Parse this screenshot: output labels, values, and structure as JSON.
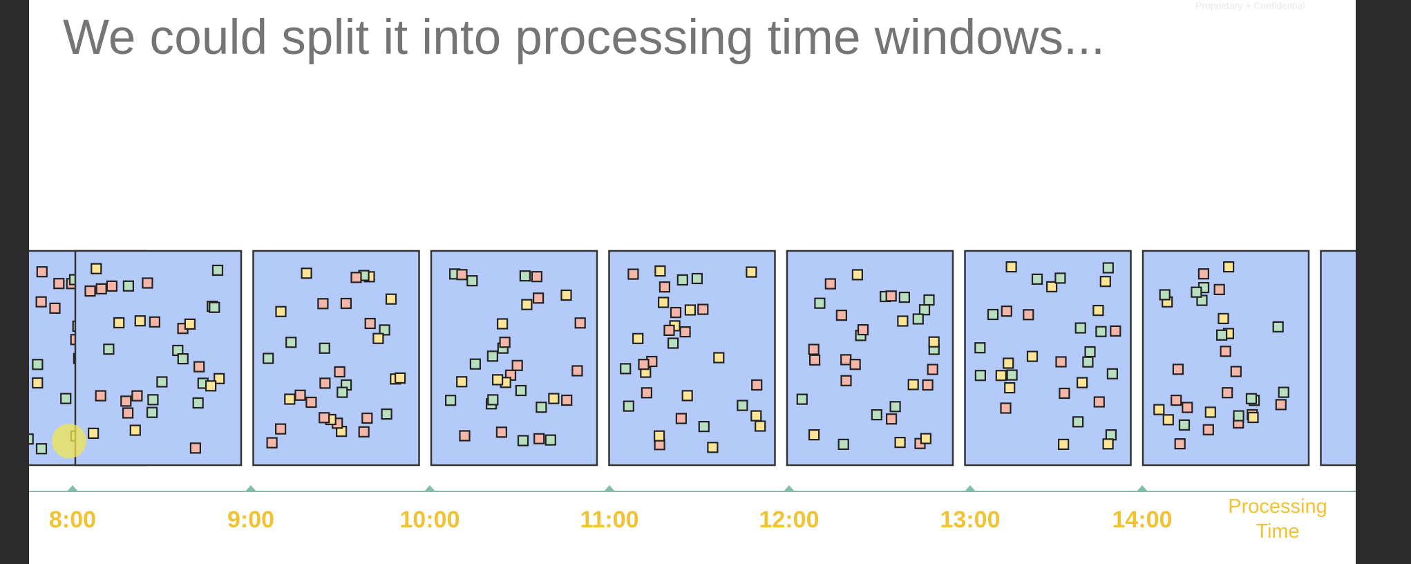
{
  "slide": {
    "title": "We could split it into processing time windows...",
    "confidential": "Proprietary + Confidential"
  },
  "colors": {
    "window_fill": "#b4cbf9",
    "window_border": "#333333",
    "axis": "#7fbfa8",
    "label": "#f1c232",
    "pink": "#f4b6a8",
    "yellow": "#fce597",
    "green": "#b7dfc0"
  },
  "axis": {
    "ticks": [
      "8:00",
      "9:00",
      "10:00",
      "11:00",
      "12:00",
      "13:00",
      "14:00"
    ],
    "title_lines": [
      "Processing",
      "Time"
    ]
  }
}
